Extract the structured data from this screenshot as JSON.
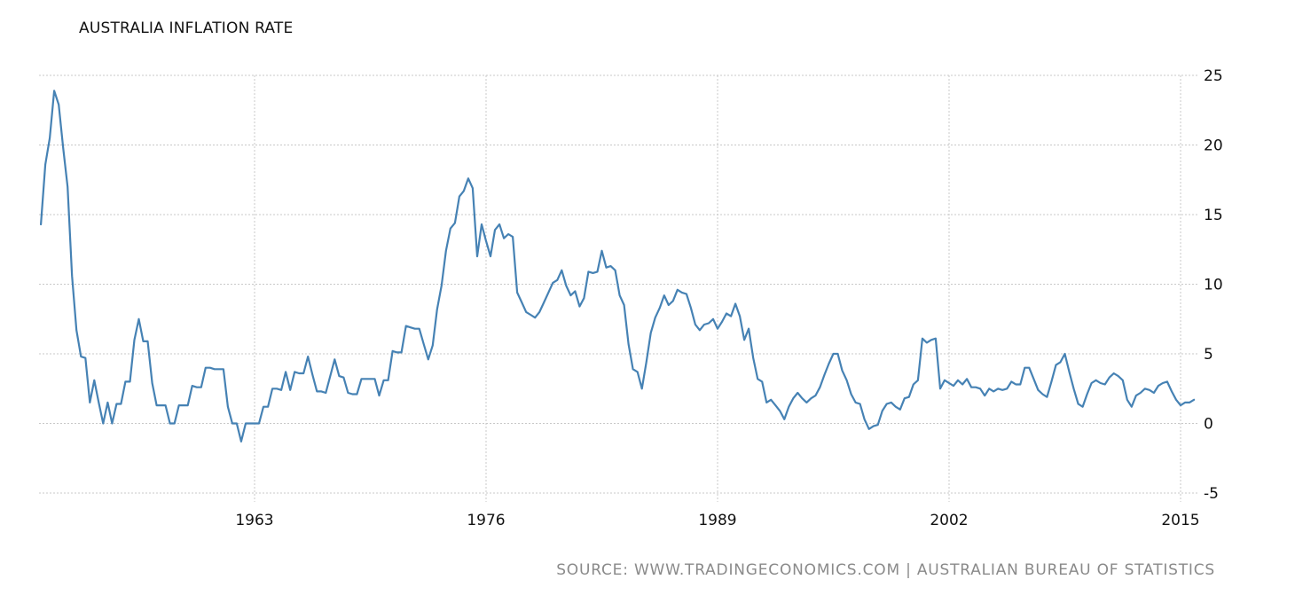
{
  "title": "AUSTRALIA INFLATION RATE",
  "source": "SOURCE: WWW.TRADINGECONOMICS.COM | AUSTRALIAN BUREAU OF STATISTICS",
  "colors": {
    "line": "#4682b4",
    "grid": "#c8c8c8",
    "text": "#111111",
    "source": "#8a8a8a"
  },
  "chart_data": {
    "type": "line",
    "title": "AUSTRALIA INFLATION RATE",
    "xlabel": "",
    "ylabel": "",
    "ylim": [
      -5,
      25
    ],
    "yticks": [
      25,
      20,
      15,
      10,
      5,
      0,
      -5
    ],
    "xticks": [
      "1963",
      "1976",
      "1989",
      "2002",
      "2015"
    ],
    "grid": true,
    "legend": "none",
    "y_axis_position": "right",
    "series": [
      {
        "name": "Australia Inflation Rate (%)",
        "x_start": 1951.0,
        "x_step_years": 0.25,
        "values": [
          14.3,
          18.6,
          20.5,
          23.9,
          22.9,
          19.8,
          17.0,
          10.6,
          6.7,
          4.8,
          4.7,
          1.5,
          3.1,
          1.5,
          0.0,
          1.5,
          0.0,
          1.4,
          1.4,
          3.0,
          3.0,
          6.0,
          7.5,
          5.9,
          5.9,
          2.9,
          1.3,
          1.3,
          1.3,
          0.0,
          0.0,
          1.3,
          1.3,
          1.3,
          2.7,
          2.6,
          2.6,
          4.0,
          4.0,
          3.9,
          3.9,
          3.9,
          1.2,
          0.0,
          0.0,
          -1.3,
          0.0,
          0.0,
          0.0,
          0.0,
          1.2,
          1.2,
          2.5,
          2.5,
          2.4,
          3.7,
          2.4,
          3.7,
          3.6,
          3.6,
          4.8,
          3.5,
          2.3,
          2.3,
          2.2,
          3.4,
          4.6,
          3.4,
          3.3,
          2.2,
          2.1,
          2.1,
          3.2,
          3.2,
          3.2,
          3.2,
          2.0,
          3.1,
          3.1,
          5.2,
          5.1,
          5.1,
          7.0,
          6.9,
          6.8,
          6.8,
          5.7,
          4.6,
          5.6,
          8.2,
          9.9,
          12.4,
          14.0,
          14.4,
          16.3,
          16.7,
          17.6,
          16.9,
          12.0,
          14.3,
          13.1,
          12.0,
          13.9,
          14.3,
          13.3,
          13.6,
          13.4,
          9.4,
          8.7,
          8.0,
          7.8,
          7.6,
          8.0,
          8.7,
          9.4,
          10.1,
          10.3,
          11.0,
          9.9,
          9.2,
          9.5,
          8.4,
          9.0,
          10.9,
          10.8,
          10.9,
          12.4,
          11.2,
          11.3,
          11.0,
          9.2,
          8.5,
          5.7,
          3.9,
          3.7,
          2.5,
          4.4,
          6.5,
          7.6,
          8.3,
          9.2,
          8.5,
          8.8,
          9.6,
          9.4,
          9.3,
          8.3,
          7.1,
          6.7,
          7.1,
          7.2,
          7.5,
          6.8,
          7.3,
          7.9,
          7.7,
          8.6,
          7.7,
          6.0,
          6.8,
          4.7,
          3.2,
          3.0,
          1.5,
          1.7,
          1.3,
          0.9,
          0.3,
          1.2,
          1.8,
          2.2,
          1.8,
          1.5,
          1.8,
          2.0,
          2.6,
          3.5,
          4.3,
          5.0,
          5.0,
          3.8,
          3.1,
          2.1,
          1.5,
          1.4,
          0.3,
          -0.4,
          -0.2,
          -0.1,
          0.9,
          1.4,
          1.5,
          1.2,
          1.0,
          1.8,
          1.9,
          2.8,
          3.1,
          6.1,
          5.8,
          6.0,
          6.1,
          2.5,
          3.1,
          2.9,
          2.7,
          3.1,
          2.8,
          3.2,
          2.6,
          2.6,
          2.5,
          2.0,
          2.5,
          2.3,
          2.5,
          2.4,
          2.5,
          3.0,
          2.8,
          2.8,
          4.0,
          4.0,
          3.2,
          2.4,
          2.1,
          1.9,
          3.0,
          4.2,
          4.4,
          5.0,
          3.7,
          2.5,
          1.4,
          1.2,
          2.1,
          2.9,
          3.1,
          2.9,
          2.8,
          3.3,
          3.6,
          3.4,
          3.1,
          1.7,
          1.2,
          2.0,
          2.2,
          2.5,
          2.4,
          2.2,
          2.7,
          2.9,
          3.0,
          2.3,
          1.7,
          1.3,
          1.5,
          1.5,
          1.7
        ]
      }
    ]
  }
}
